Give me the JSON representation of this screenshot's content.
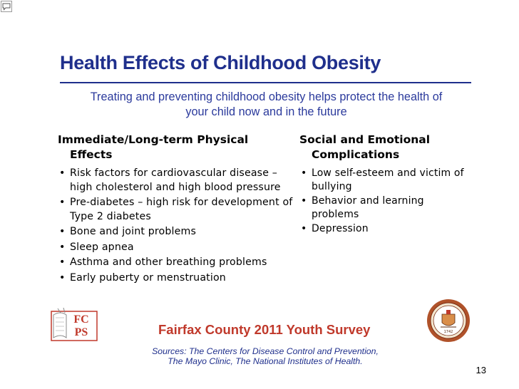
{
  "slide": {
    "title": "Health Effects of Childhood Obesity",
    "subtitle_line1": "Treating and preventing childhood obesity helps protect the health of",
    "subtitle_line2": "your child now and in the future",
    "page_number": "13"
  },
  "physical": {
    "heading": "Immediate/Long-term Physical Effects",
    "items": [
      "Risk factors for cardiovascular disease – high cholesterol and high blood pressure",
      "Pre-diabetes – high risk for development of Type 2 diabetes",
      "Bone and joint problems",
      "Sleep apnea",
      "Asthma and other breathing problems",
      "Early puberty or menstruation"
    ]
  },
  "social": {
    "heading": "Social and Emotional Complications",
    "items": [
      "Low self-esteem and victim of bullying",
      "Behavior and learning problems",
      "Depression"
    ]
  },
  "footer": {
    "survey_title": "Fairfax County 2011 Youth Survey",
    "sources_line1": "Sources: The Centers for Disease Control and Prevention,",
    "sources_line2": "The Mayo Clinic, The National Institutes of Health.",
    "logo_text": "FCPS",
    "seal_text": "1742"
  },
  "colors": {
    "title_blue": "#1f2f8c",
    "survey_red": "#c0392b",
    "logo_red": "#c0392b"
  }
}
